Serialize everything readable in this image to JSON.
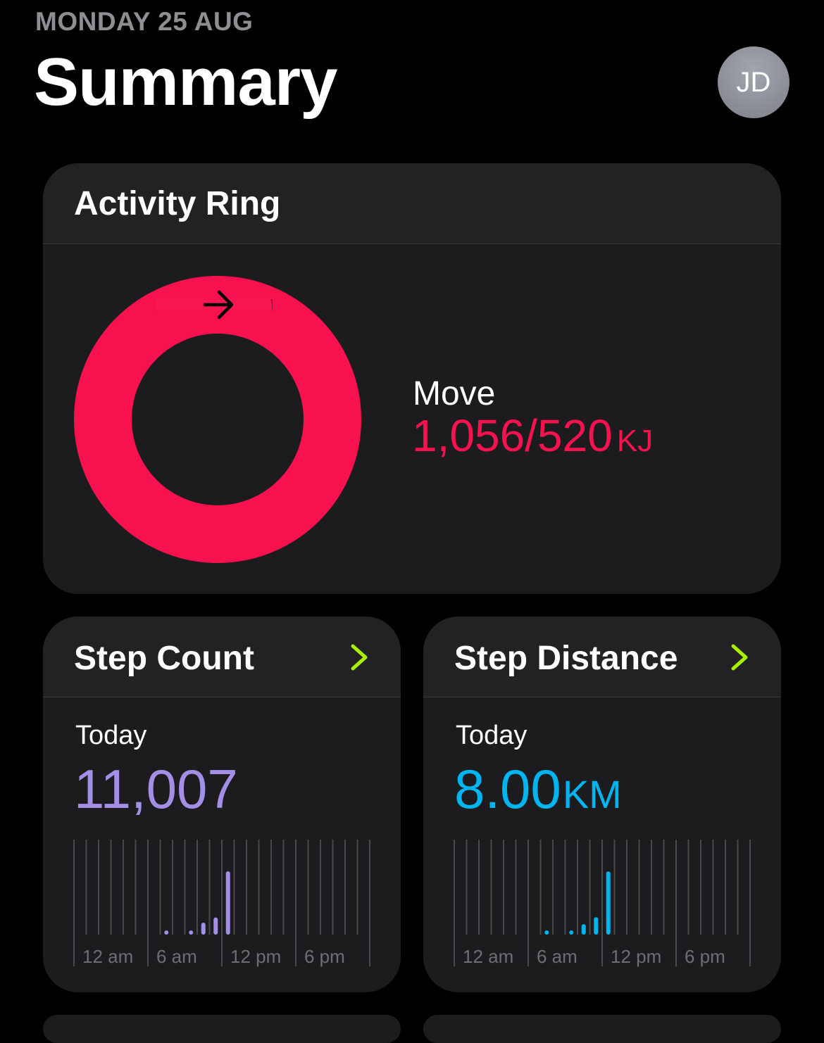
{
  "header": {
    "date": "MONDAY 25 AUG",
    "title": "Summary",
    "avatar_initials": "JD"
  },
  "activity_ring": {
    "title": "Activity Ring",
    "move_label": "Move",
    "move_value": "1,056/520",
    "move_unit": "KJ",
    "move_current": 1056,
    "move_goal": 520,
    "ring_color": "#f7124f",
    "icon": "arrow-right-icon"
  },
  "step_count": {
    "title": "Step Count",
    "period": "Today",
    "value": "11,007",
    "unit": "",
    "color": "#a48fe6",
    "chevron_color": "#a8f000"
  },
  "step_distance": {
    "title": "Step Distance",
    "period": "Today",
    "value": "8.00",
    "unit": "KM",
    "color": "#00b4f0",
    "chevron_color": "#a8f000"
  },
  "chart_data": [
    {
      "type": "bar",
      "x_label_ticks": [
        "12 am",
        "6 am",
        "12 pm",
        "6 pm"
      ],
      "x_range_hours": [
        0,
        24
      ],
      "grid": true,
      "hours": [
        7,
        9,
        10,
        11,
        12
      ],
      "values": [
        100,
        100,
        1400,
        2000,
        7400
      ],
      "ylim": [
        0,
        11100
      ]
    },
    {
      "type": "bar",
      "x_label_ticks": [
        "12 am",
        "6 am",
        "12 pm",
        "6 pm"
      ],
      "x_range_hours": [
        0,
        24
      ],
      "grid": true,
      "hours": [
        7,
        9,
        10,
        11,
        12
      ],
      "values": [
        0.05,
        0.1,
        0.9,
        1.5,
        5.45
      ],
      "ylim": [
        0,
        8.2
      ]
    }
  ]
}
